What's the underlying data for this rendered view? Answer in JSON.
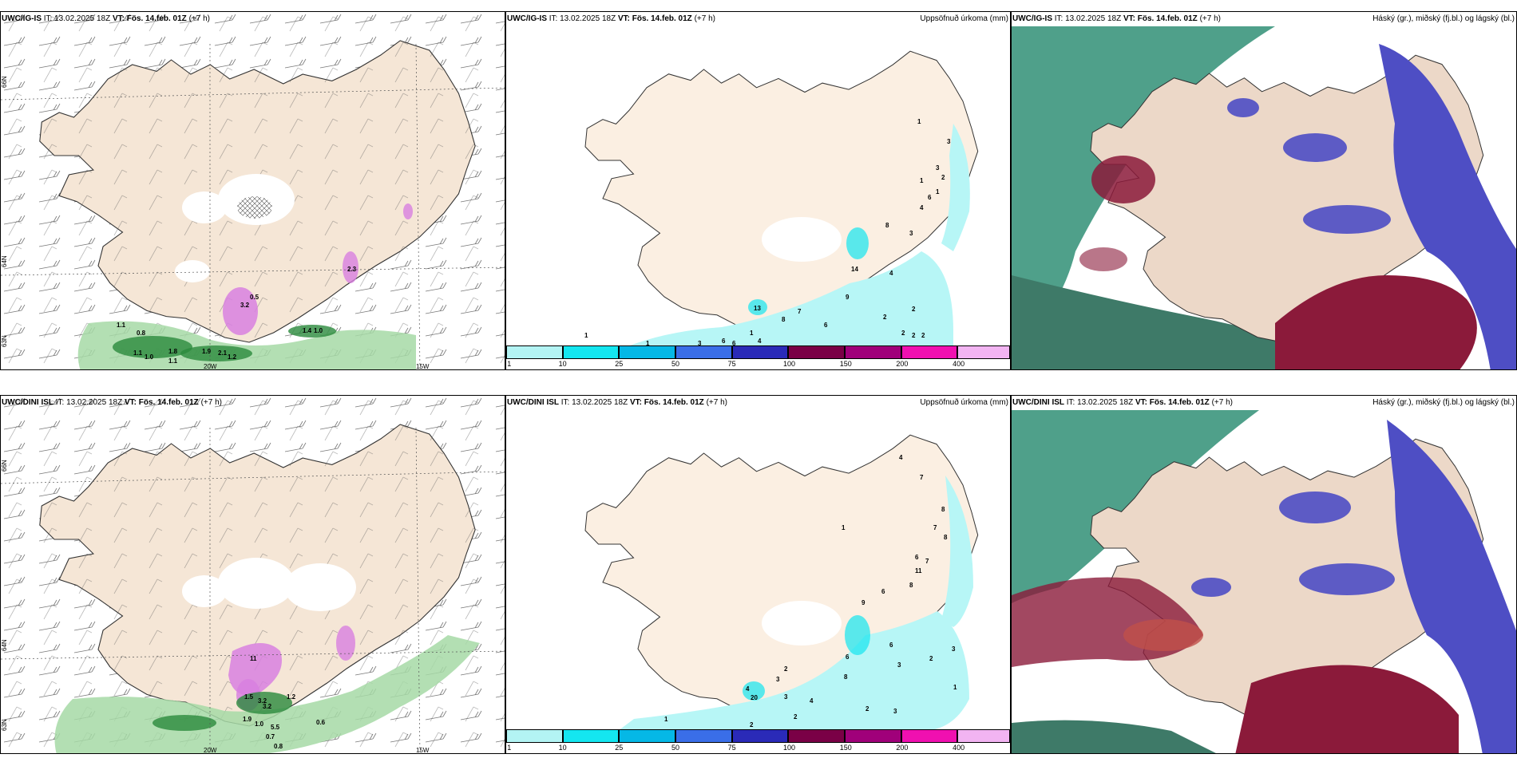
{
  "colors": {
    "land": "#f9ece0",
    "land_dark": "#e8d6c4",
    "snow": "#ffffff",
    "precip_green": "#a6d9a6",
    "precip_dark_green": "#2b8a3c",
    "precip_purple": "#d880e0",
    "rain_cyan": "#b7f6f6",
    "cloud_high_teal": "#4fa08a",
    "cloud_mid_red": "#8b1a3a",
    "cloud_low_blue": "#4e4ec4"
  },
  "colorbar": {
    "ticks": [
      "1",
      "10",
      "25",
      "50",
      "75",
      "100",
      "150",
      "200",
      "400"
    ],
    "colors": [
      "#b3f4f4",
      "#14e6f0",
      "#05b8e6",
      "#3a6ee8",
      "#2a2ab8",
      "#7a0046",
      "#a0007a",
      "#f010b0",
      "#f2b4f2"
    ]
  },
  "panels": {
    "tl": {
      "model": "UWC/IG-IS",
      "it_label": "IT:",
      "it_value": "13.02.2025 18Z",
      "vt_label": "VT:",
      "vt_value": "Fös. 14.feb. 01Z",
      "lead": "(+7 h)",
      "lat_labels": [
        "66N",
        "64N",
        "63N"
      ],
      "lon_labels": [
        "20W",
        "15W"
      ],
      "values": [
        "1.1",
        "0.8",
        "1.1",
        "1.0",
        "1.8",
        "1.1",
        "1.9",
        "2.1",
        "3.2",
        "1.2",
        "1.4",
        "1.0",
        "2.3",
        "0.5"
      ]
    },
    "tc": {
      "model": "UWC/IG-IS",
      "it_label": "IT:",
      "it_value": "13.02.2025 18Z",
      "vt_label": "VT:",
      "vt_value": "Fös. 14.feb. 01Z",
      "lead": "(+7 h)",
      "right_title": "Uppsöfnuð úrkoma (mm)",
      "values": [
        "1",
        "3",
        "3",
        "2",
        "1",
        "6",
        "4",
        "1",
        "8",
        "3",
        "4",
        "14",
        "7",
        "9",
        "6",
        "8",
        "2",
        "2",
        "2",
        "2",
        "2",
        "1",
        "13",
        "1",
        "4",
        "6",
        "6",
        "3",
        "1"
      ]
    },
    "tr": {
      "model": "UWC/IG-IS",
      "it_label": "IT:",
      "it_value": "13.02.2025 18Z",
      "vt_label": "VT:",
      "vt_value": "Fös. 14.feb. 01Z",
      "lead": "(+7 h)",
      "right_title": "Háský (gr.), miðský (fj.bl.) og lágský (bl.)"
    },
    "bl": {
      "model": "UWC/DINI ISL",
      "it_label": "IT:",
      "it_value": "13.02.2025 18Z",
      "vt_label": "VT:",
      "vt_value": "Fös. 14.feb. 01Z",
      "lead": "(+7",
      "lead_wrap": "h)",
      "lat_labels": [
        "66N",
        "64N",
        "63N"
      ],
      "lon_labels": [
        "20W",
        "15W"
      ],
      "values": [
        "11",
        "1.5",
        "3.2",
        "3.2",
        "1.9",
        "1.0",
        "5.5",
        "0.7",
        "0.8",
        "0.6",
        "1.2"
      ]
    },
    "bc": {
      "model": "UWC/DINI ISL",
      "it_label": "IT:",
      "it_value": "13.02.2025 18Z",
      "vt_label": "VT:",
      "vt_value": "Fös. 14.feb. 01Z",
      "lead": "(+7 h)",
      "right_title": "Uppsöfnuð úrkoma (mm)",
      "values": [
        "4",
        "7",
        "8",
        "7",
        "8",
        "1",
        "6",
        "7",
        "11",
        "8",
        "6",
        "9",
        "6",
        "3",
        "2",
        "3",
        "1",
        "6",
        "2",
        "8",
        "3",
        "3",
        "4",
        "4",
        "2",
        "3",
        "2",
        "20",
        "2",
        "1"
      ]
    },
    "br": {
      "model": "UWC/DINI ISL",
      "it_label": "IT:",
      "it_value": "13.02.2025 18Z",
      "vt_label": "VT:",
      "vt_value": "Fös. 14.feb. 01Z",
      "lead": "(+7 h)",
      "right_title": "Háský (gr.), miðský (fj.bl.) og lágský (bl.)"
    }
  }
}
